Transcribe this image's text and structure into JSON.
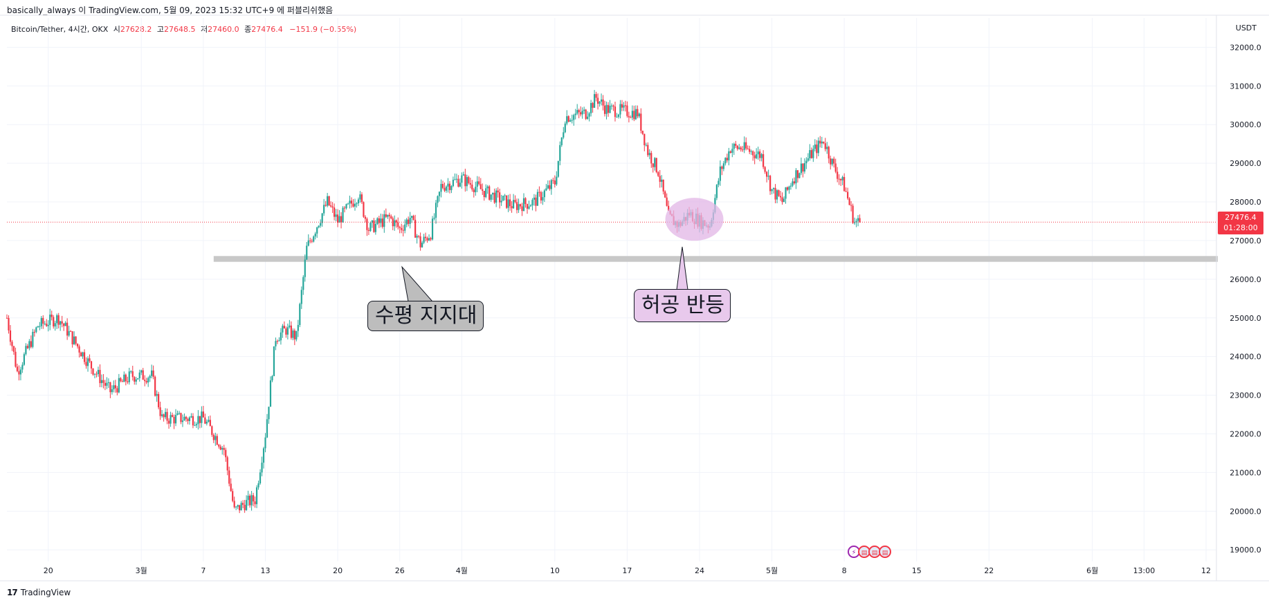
{
  "attribution": "basically_always 이 TradingView.com, 5월 09, 2023 15:32 UTC+9 에 퍼블리쉬했음",
  "legend": {
    "symbol": "Bitcoin/Tether, 4시간, OKX",
    "open_label": "시",
    "open": "27628.2",
    "high_label": "고",
    "high": "27648.5",
    "low_label": "저",
    "low": "27460.0",
    "close_label": "종",
    "close": "27476.4",
    "change": "−151.9 (−0.55%)"
  },
  "currency": "USDT",
  "price_tag": {
    "price": "27476.4",
    "countdown": "01:28:00"
  },
  "footer": {
    "brand": "TradingView"
  },
  "annotations": {
    "support_label": "수평 지지대",
    "fake_bounce_label": "허공 반등"
  },
  "colors": {
    "up": "#26a69a",
    "down": "#f23645",
    "support_band": "#c8c8c8",
    "highlight": "#e1b5e6",
    "grid": "#f0f3fa"
  },
  "chart_data": {
    "type": "candlestick",
    "title": "",
    "xlabel": "",
    "ylabel": "",
    "ylim": [
      18700,
      32400
    ],
    "y_ticks": [
      19000,
      20000,
      21000,
      22000,
      23000,
      24000,
      25000,
      26000,
      27000,
      28000,
      29000,
      30000,
      31000,
      32000
    ],
    "y_tick_labels": [
      "19000.0",
      "20000.0",
      "21000.0",
      "22000.0",
      "23000.0",
      "24000.0",
      "25000.0",
      "26000.0",
      "27000.0",
      "28000.0",
      "29000.0",
      "30000.0",
      "31000.0",
      "32000.0"
    ],
    "x_tick_labels": [
      "20",
      "3월",
      "7",
      "13",
      "20",
      "26",
      "4월",
      "10",
      "17",
      "24",
      "5월",
      "8",
      "15",
      "22",
      "6월",
      "13:00",
      "12"
    ],
    "x_tick_dates": [
      "2023-02-20",
      "2023-03-01",
      "2023-03-07",
      "2023-03-13",
      "2023-03-20",
      "2023-03-26",
      "2023-04-01",
      "2023-04-10",
      "2023-04-17",
      "2023-04-24",
      "2023-05-01",
      "2023-05-08",
      "2023-05-15",
      "2023-05-22",
      "2023-06-01",
      "2023-06-06",
      "2023-06-12"
    ],
    "x_range": [
      "2023-02-16",
      "2023-06-13"
    ],
    "last_date": "2023-05-09",
    "current_price": 27476.4,
    "support_level": [
      26450,
      26600
    ],
    "support_start": "2023-03-08",
    "key_path": [
      [
        "2023-02-16",
        25000
      ],
      [
        "2023-02-17",
        23600
      ],
      [
        "2023-02-19",
        24800
      ],
      [
        "2023-02-21",
        25000
      ],
      [
        "2023-02-24",
        23800
      ],
      [
        "2023-02-26",
        23100
      ],
      [
        "2023-02-28",
        23500
      ],
      [
        "2023-03-02",
        23500
      ],
      [
        "2023-03-03",
        22400
      ],
      [
        "2023-03-07",
        22400
      ],
      [
        "2023-03-09",
        21600
      ],
      [
        "2023-03-10",
        20000
      ],
      [
        "2023-03-11",
        20200
      ],
      [
        "2023-03-12",
        20300
      ],
      [
        "2023-03-13",
        22000
      ],
      [
        "2023-03-14",
        24500
      ],
      [
        "2023-03-15",
        24700
      ],
      [
        "2023-03-16",
        24500
      ],
      [
        "2023-03-17",
        26800
      ],
      [
        "2023-03-19",
        28000
      ],
      [
        "2023-03-20",
        27500
      ],
      [
        "2023-03-22",
        28200
      ],
      [
        "2023-03-23",
        27300
      ],
      [
        "2023-03-25",
        27600
      ],
      [
        "2023-03-26",
        27300
      ],
      [
        "2023-03-27",
        27600
      ],
      [
        "2023-03-28",
        26900
      ],
      [
        "2023-03-29",
        27200
      ],
      [
        "2023-03-30",
        28400
      ],
      [
        "2023-04-01",
        28600
      ],
      [
        "2023-04-03",
        28300
      ],
      [
        "2023-04-06",
        27900
      ],
      [
        "2023-04-08",
        28000
      ],
      [
        "2023-04-10",
        28500
      ],
      [
        "2023-04-11",
        30200
      ],
      [
        "2023-04-13",
        30300
      ],
      [
        "2023-04-14",
        30700
      ],
      [
        "2023-04-15",
        30400
      ],
      [
        "2023-04-18",
        30300
      ],
      [
        "2023-04-19",
        29300
      ],
      [
        "2023-04-20",
        28800
      ],
      [
        "2023-04-21",
        27600
      ],
      [
        "2023-04-22",
        27400
      ],
      [
        "2023-04-23",
        27700
      ],
      [
        "2023-04-24",
        27500
      ],
      [
        "2023-04-25",
        27400
      ],
      [
        "2023-04-26",
        28800
      ],
      [
        "2023-04-27",
        29400
      ],
      [
        "2023-04-28",
        29400
      ],
      [
        "2023-04-30",
        29200
      ],
      [
        "2023-05-01",
        28300
      ],
      [
        "2023-05-02",
        28000
      ],
      [
        "2023-05-03",
        28600
      ],
      [
        "2023-05-05",
        29300
      ],
      [
        "2023-05-06",
        29600
      ],
      [
        "2023-05-07",
        28900
      ],
      [
        "2023-05-08",
        28400
      ],
      [
        "2023-05-09",
        27476
      ]
    ]
  }
}
